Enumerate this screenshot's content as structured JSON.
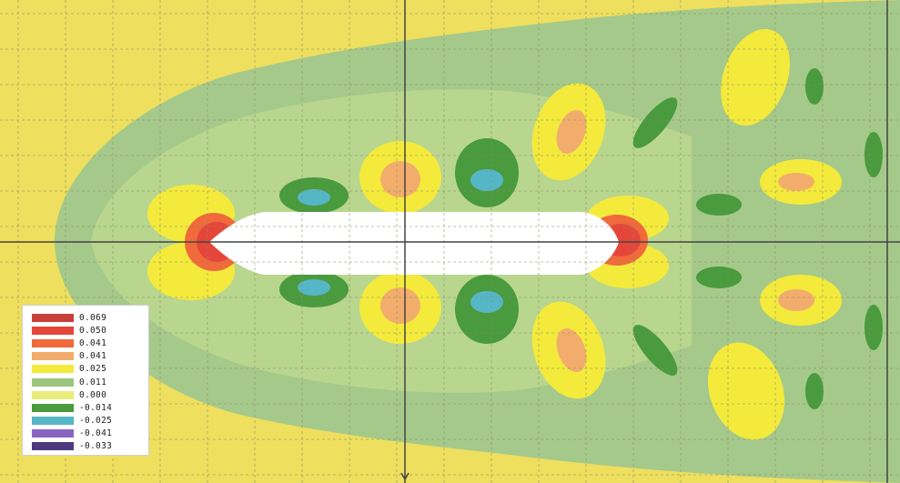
{
  "chart_data": {
    "type": "heatmap",
    "title": "",
    "xlabel": "",
    "ylabel": "",
    "grid": true,
    "legend_placement": "bottom-left",
    "colors": {
      "background_level": "#eedf5e",
      "hull": "#ffffff",
      "axis_lines": "#444444",
      "grid": "#8c8c6a"
    },
    "legend": [
      {
        "label": "0.069",
        "color": "#c7413a"
      },
      {
        "label": "0.050",
        "color": "#e4473a"
      },
      {
        "label": "0.041",
        "color": "#f06a3c"
      },
      {
        "label": "0.041",
        "color": "#f2ad6c"
      },
      {
        "label": "0.025",
        "color": "#f4ea3c"
      },
      {
        "label": "0.011",
        "color": "#9bc57e"
      },
      {
        "label": "0.000",
        "color": "#e9ec7a"
      },
      {
        "label": "-0.014",
        "color": "#4a9a3e"
      },
      {
        "label": "-0.025",
        "color": "#55b7c6"
      },
      {
        "label": "-0.041",
        "color": "#8a63c2"
      },
      {
        "label": "-0.033",
        "color": "#4d3a7e"
      }
    ]
  }
}
